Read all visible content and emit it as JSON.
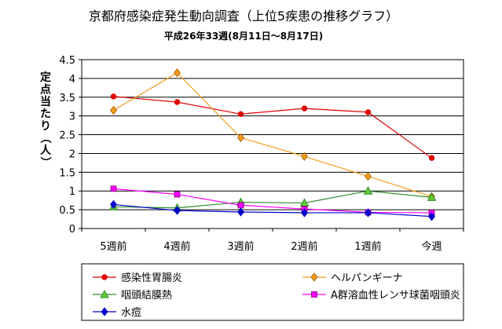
{
  "chart_data": {
    "type": "line",
    "title": "京都府感染症発生動向調査（上位5疾患の推移グラフ）",
    "subtitle": "平成26年33週(8月11日～8月17日)",
    "ylabel": "定点当たり（人）",
    "xlabel": "",
    "categories": [
      "5週前",
      "4週前",
      "3週前",
      "2週前",
      "1週前",
      "今週"
    ],
    "ylim": [
      0,
      4.5
    ],
    "ytick_step": 0.5,
    "yticks": [
      "0",
      "0.5",
      "1",
      "1.5",
      "2",
      "2.5",
      "3",
      "3.5",
      "4",
      "4.5"
    ],
    "grid": true,
    "legend_position": "bottom",
    "series": [
      {
        "name": "感染性胃腸炎",
        "color": "#e00000",
        "marker": "circle",
        "values": [
          3.52,
          3.37,
          3.05,
          3.2,
          3.1,
          1.88
        ]
      },
      {
        "name": "ヘルパンギーナ",
        "color": "#f39b1e",
        "marker": "diamond",
        "values": [
          3.15,
          4.15,
          2.42,
          1.92,
          1.39,
          0.85
        ]
      },
      {
        "name": "咽頭結膜熱",
        "color": "#2e8b2e",
        "marker": "triangle",
        "values": [
          0.58,
          0.55,
          0.7,
          0.68,
          1.0,
          0.83
        ]
      },
      {
        "name": "A群溶血性レンサ球菌咽頭炎",
        "color": "#ff00ff",
        "marker": "square",
        "values": [
          1.06,
          0.91,
          0.62,
          0.52,
          0.43,
          0.42
        ]
      },
      {
        "name": "水痘",
        "color": "#0000cc",
        "marker": "diamond",
        "values": [
          0.64,
          0.48,
          0.44,
          0.42,
          0.42,
          0.32
        ]
      }
    ]
  }
}
